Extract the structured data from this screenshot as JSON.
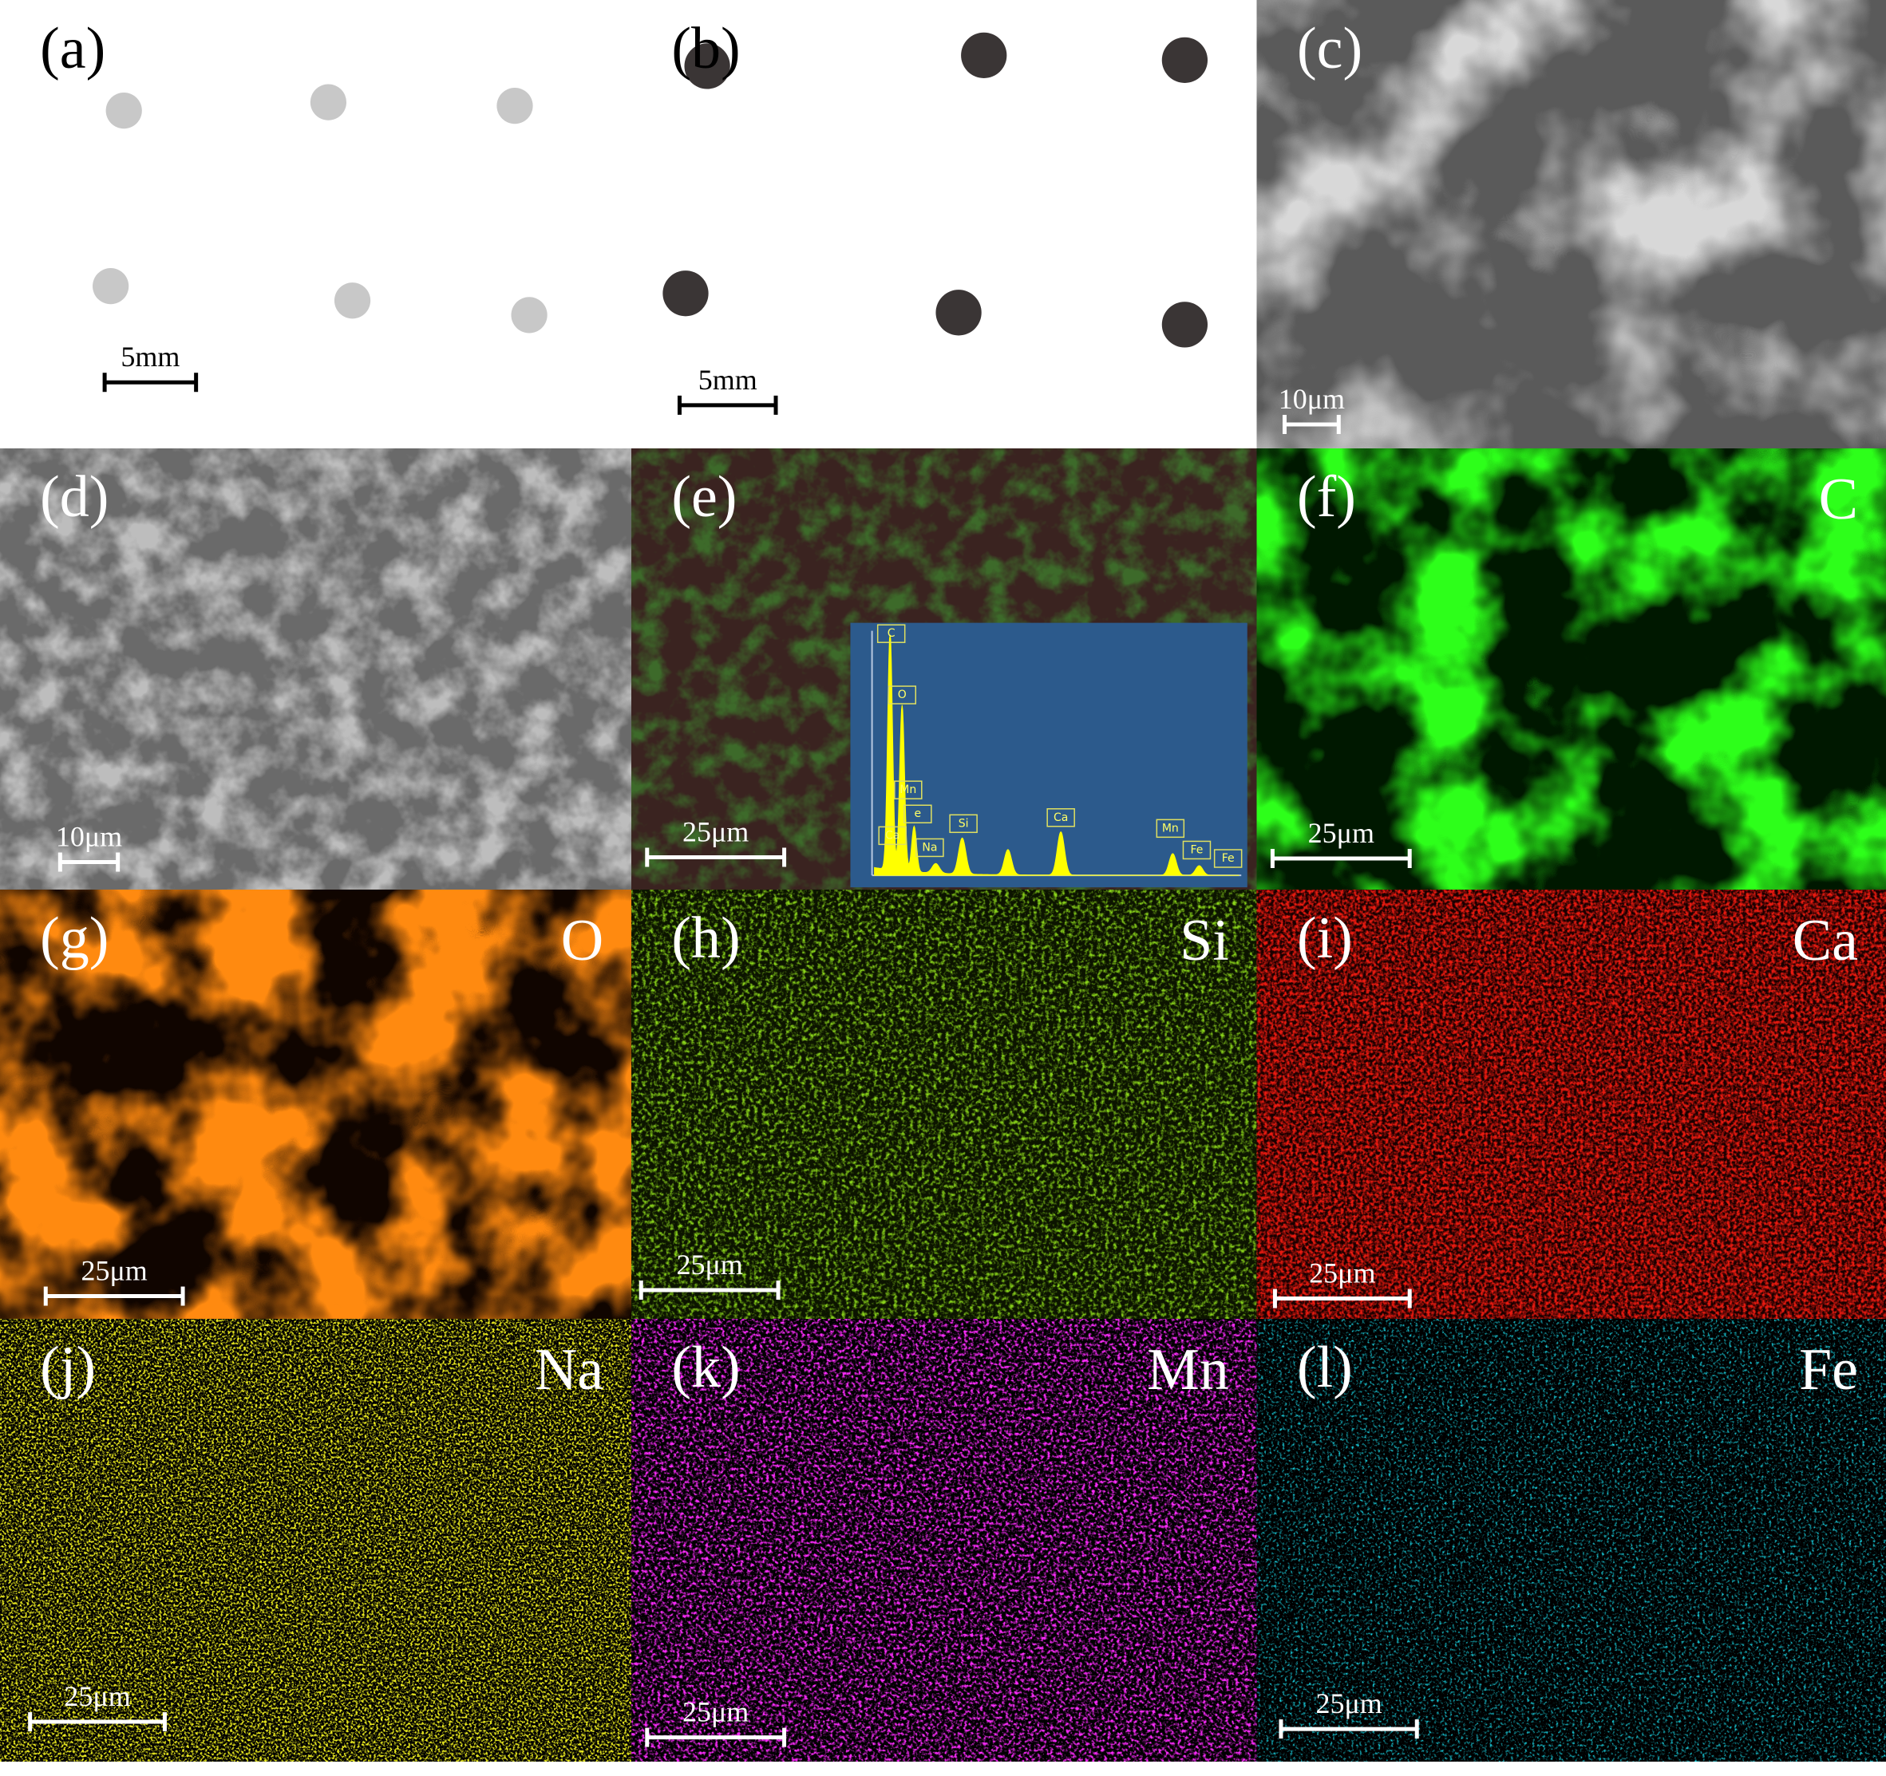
{
  "panels": [
    {
      "label": "(a)",
      "scale": "5mm"
    },
    {
      "label": "(b)",
      "scale": "5mm"
    },
    {
      "label": "(c)",
      "scale": "10μm"
    },
    {
      "label": "(d)",
      "scale": "10μm"
    },
    {
      "label": "(e)",
      "scale": "25μm",
      "spectrum_peaks": [
        "C",
        "O",
        "Mn",
        "e",
        "Ca",
        "Na",
        "Si",
        "Ca",
        "Mn",
        "Fe",
        "Fe"
      ]
    },
    {
      "label": "(f)",
      "element": "C",
      "scale": "25μm"
    },
    {
      "label": "(g)",
      "element": "O",
      "scale": "25μm"
    },
    {
      "label": "(h)",
      "element": "Si",
      "scale": "25μm"
    },
    {
      "label": "(i)",
      "element": "Ca",
      "scale": "25μm"
    },
    {
      "label": "(j)",
      "element": "Na",
      "scale": "25μm"
    },
    {
      "label": "(k)",
      "element": "Mn",
      "scale": "25μm"
    },
    {
      "label": "(l)",
      "element": "Fe",
      "scale": "25μm"
    }
  ]
}
